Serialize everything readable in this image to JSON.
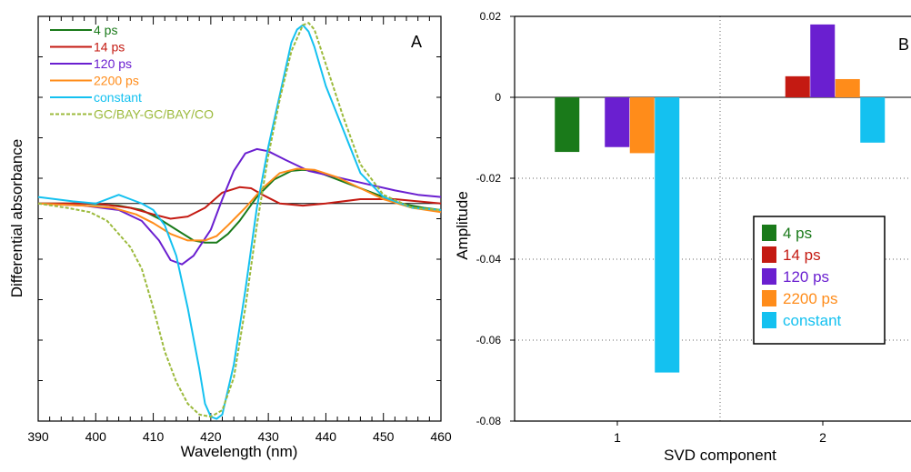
{
  "chart_data": [
    {
      "type": "line",
      "panel_label": "A",
      "xlabel": "Wavelength (nm)",
      "ylabel": "Differential absorbance",
      "xlim": [
        390,
        460
      ],
      "x_ticks": [
        "390",
        "400",
        "410",
        "420",
        "430",
        "440",
        "450",
        "460"
      ],
      "y_range_relative": [
        -1.0,
        0.86
      ],
      "y_tick_labels": false,
      "zero_line": true,
      "legend_position": "top-left",
      "series": [
        {
          "name": "4 ps",
          "color": "#1a7a1a",
          "dash": false,
          "x": [
            390,
            398,
            404,
            408,
            411,
            414,
            417,
            419,
            421,
            423,
            425,
            428,
            431,
            434,
            436,
            438,
            441,
            445,
            449,
            453,
            457,
            460
          ],
          "y": [
            0.0,
            0.0,
            -0.01,
            -0.03,
            -0.07,
            -0.12,
            -0.17,
            -0.18,
            -0.18,
            -0.14,
            -0.08,
            0.03,
            0.11,
            0.15,
            0.155,
            0.15,
            0.12,
            0.08,
            0.04,
            0.0,
            -0.02,
            -0.03
          ]
        },
        {
          "name": "14 ps",
          "color": "#c41a12",
          "dash": false,
          "x": [
            390,
            400,
            406,
            410,
            413,
            416,
            419,
            422,
            425,
            427,
            429,
            432,
            436,
            440,
            446,
            452,
            456,
            460
          ],
          "y": [
            0.0,
            0.0,
            -0.02,
            -0.05,
            -0.07,
            -0.06,
            -0.02,
            0.05,
            0.075,
            0.07,
            0.04,
            0.0,
            -0.01,
            0.0,
            0.02,
            0.02,
            0.01,
            0.0
          ]
        },
        {
          "name": "120 ps",
          "color": "#6a1fd0",
          "dash": false,
          "x": [
            390,
            398,
            404,
            408,
            411,
            413,
            415,
            417,
            420,
            422,
            424,
            426,
            428,
            430,
            433,
            437,
            442,
            447,
            452,
            456,
            460
          ],
          "y": [
            0.0,
            -0.01,
            -0.03,
            -0.08,
            -0.17,
            -0.26,
            -0.28,
            -0.24,
            -0.12,
            0.02,
            0.15,
            0.23,
            0.25,
            0.24,
            0.2,
            0.15,
            0.12,
            0.09,
            0.06,
            0.04,
            0.03
          ]
        },
        {
          "name": "2200 ps",
          "color": "#ff8c1a",
          "dash": false,
          "x": [
            390,
            398,
            403,
            407,
            410,
            413,
            416,
            419,
            421,
            423,
            426,
            429,
            432,
            435,
            438,
            442,
            446,
            450,
            455,
            460
          ],
          "y": [
            0.0,
            -0.01,
            -0.02,
            -0.05,
            -0.09,
            -0.14,
            -0.17,
            -0.17,
            -0.15,
            -0.1,
            -0.02,
            0.07,
            0.14,
            0.16,
            0.155,
            0.12,
            0.07,
            0.02,
            -0.02,
            -0.04
          ]
        },
        {
          "name": "constant",
          "color": "#14c1f0",
          "dash": false,
          "x": [
            390,
            396,
            400,
            404,
            406,
            408,
            410,
            412,
            414,
            416,
            418,
            419,
            420,
            421,
            422,
            424,
            426,
            428,
            430,
            432,
            434,
            435,
            436,
            437,
            438,
            440,
            443,
            446,
            450,
            455,
            460
          ],
          "y": [
            0.03,
            0.01,
            0.0,
            0.04,
            0.02,
            0.0,
            -0.03,
            -0.1,
            -0.24,
            -0.48,
            -0.76,
            -0.92,
            -0.98,
            -0.99,
            -0.97,
            -0.74,
            -0.4,
            -0.02,
            0.26,
            0.5,
            0.74,
            0.8,
            0.82,
            0.79,
            0.72,
            0.54,
            0.34,
            0.14,
            0.03,
            -0.02,
            -0.03
          ]
        },
        {
          "name": "GC/BAY-GC/BAY/CO",
          "color": "#9cba3c",
          "dash": true,
          "x": [
            390,
            395,
            399,
            402,
            404,
            406,
            408,
            410,
            412,
            414,
            416,
            418,
            420,
            422,
            424,
            426,
            428,
            430,
            432,
            434,
            436,
            437,
            438,
            440,
            443,
            446,
            450,
            455,
            460
          ],
          "y": [
            0.0,
            -0.02,
            -0.04,
            -0.08,
            -0.14,
            -0.2,
            -0.3,
            -0.48,
            -0.68,
            -0.82,
            -0.92,
            -0.97,
            -0.98,
            -0.95,
            -0.8,
            -0.48,
            -0.1,
            0.22,
            0.48,
            0.7,
            0.82,
            0.83,
            0.8,
            0.64,
            0.4,
            0.18,
            0.04,
            -0.02,
            -0.03
          ]
        }
      ]
    },
    {
      "type": "bar",
      "panel_label": "B",
      "xlabel": "SVD component",
      "ylabel": "Amplitude",
      "categories": [
        "1",
        "2"
      ],
      "ylim": [
        -0.08,
        0.02
      ],
      "y_ticks": [
        0.02,
        0,
        -0.02,
        -0.04,
        -0.06,
        -0.08
      ],
      "y_tick_labels": [
        "0.02",
        "0",
        "-0.02",
        "-0.04",
        "-0.06",
        "-0.08"
      ],
      "grid": "dotted",
      "legend_position": "right",
      "series": [
        {
          "name": "4 ps",
          "color": "#1a7a1a",
          "values": [
            -0.0135,
            0
          ]
        },
        {
          "name": "14 ps",
          "color": "#c41a12",
          "values": [
            0,
            0.0052
          ]
        },
        {
          "name": "120 ps",
          "color": "#6a1fd0",
          "values": [
            -0.0123,
            0.018
          ]
        },
        {
          "name": "2200 ps",
          "color": "#ff8c1a",
          "values": [
            -0.0138,
            0.0045
          ]
        },
        {
          "name": "constant",
          "color": "#14c1f0",
          "values": [
            -0.068,
            -0.0112
          ]
        }
      ]
    }
  ]
}
